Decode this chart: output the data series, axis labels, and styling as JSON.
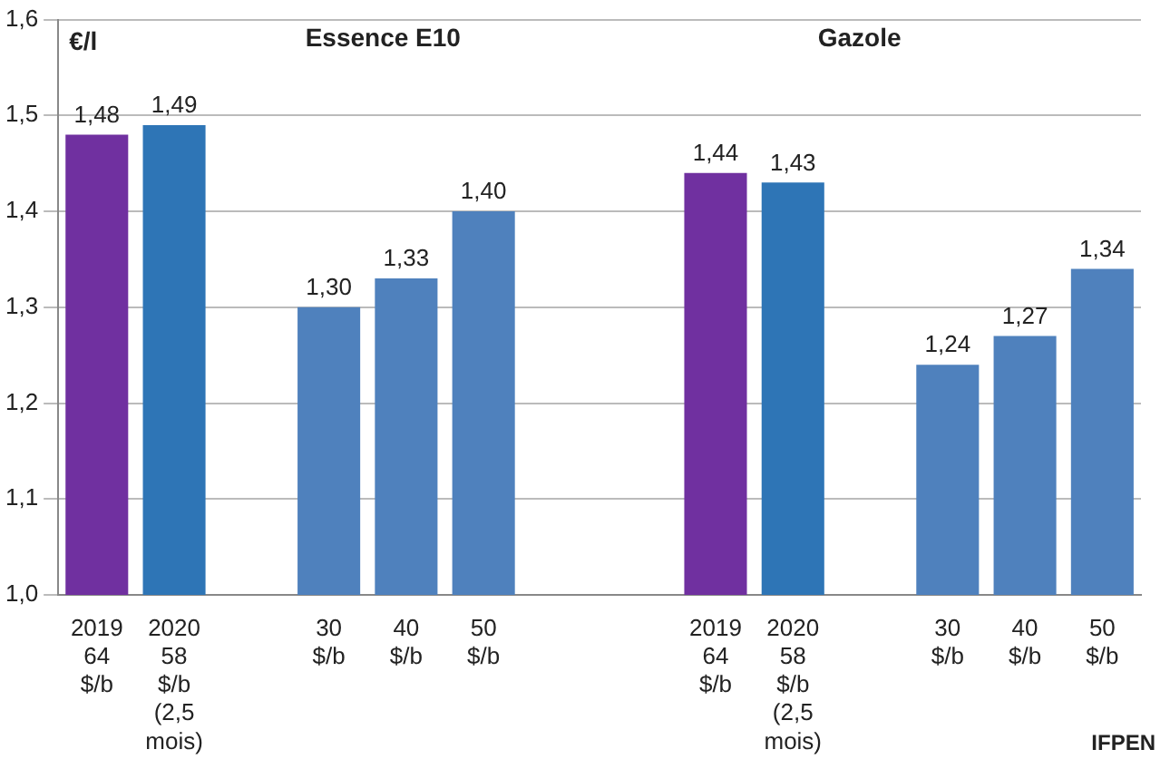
{
  "chart_data": {
    "type": "bar",
    "categories": [
      "2019\n64\n$/b",
      "2020\n58\n$/b\n(2,5\nmois)",
      null,
      "30\n$/b",
      "40\n$/b",
      "50\n$/b",
      null,
      null,
      "2019\n64\n$/b",
      "2020\n58\n$/b\n(2,5\nmois)",
      null,
      "30\n$/b",
      "40\n$/b",
      "50\n$/b"
    ],
    "values": [
      1.48,
      1.49,
      null,
      1.3,
      1.33,
      1.4,
      null,
      null,
      1.44,
      1.43,
      null,
      1.24,
      1.27,
      1.34
    ],
    "colors": [
      "#7030a0",
      "#2e75b6",
      null,
      "#4f81bd",
      "#4f81bd",
      "#4f81bd",
      null,
      null,
      "#7030a0",
      "#2e75b6",
      null,
      "#4f81bd",
      "#4f81bd",
      "#4f81bd"
    ],
    "value_labels": [
      "1,48",
      "1,49",
      null,
      "1,30",
      "1,33",
      "1,40",
      null,
      null,
      "1,44",
      "1,43",
      null,
      "1,24",
      "1,27",
      "1,34"
    ],
    "ylabel": "€/l",
    "ylim": [
      1.0,
      1.6
    ],
    "yticks": [
      {
        "value": 1.0,
        "label": "1,0"
      },
      {
        "value": 1.1,
        "label": "1,1"
      },
      {
        "value": 1.2,
        "label": "1,2"
      },
      {
        "value": 1.3,
        "label": "1,3"
      },
      {
        "value": 1.4,
        "label": "1,4"
      },
      {
        "value": 1.5,
        "label": "1,5"
      },
      {
        "value": 1.6,
        "label": "1,6"
      }
    ],
    "grid": "y",
    "annotations": [
      "Essence E10",
      "Gazole",
      "IFPEN"
    ]
  }
}
